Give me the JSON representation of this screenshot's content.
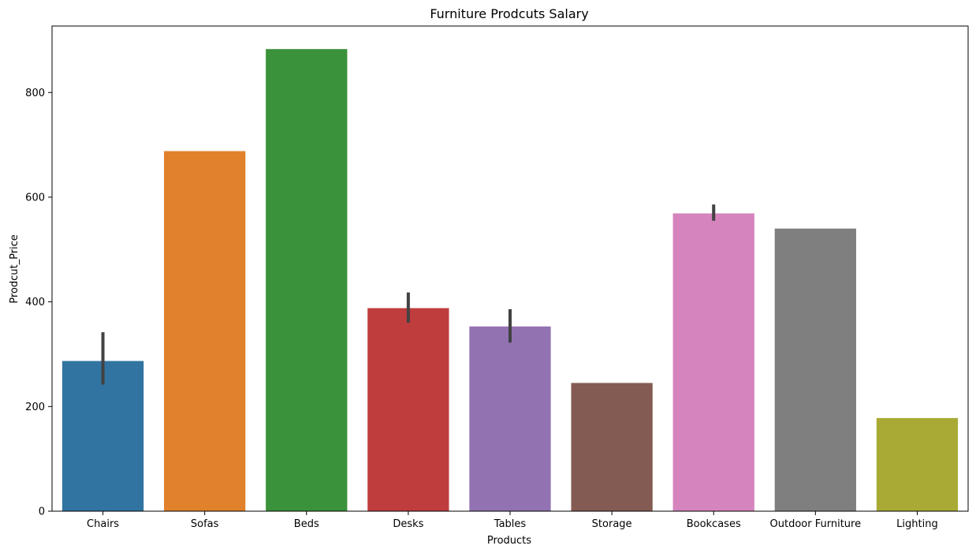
{
  "chart_data": {
    "type": "bar",
    "title": "Furniture Prodcuts Salary",
    "xlabel": "Products",
    "ylabel": "Prodcut_Price",
    "categories": [
      "Chairs",
      "Sofas",
      "Beds",
      "Desks",
      "Tables",
      "Storage",
      "Bookcases",
      "Outdoor Furniture",
      "Lighting"
    ],
    "values": [
      287,
      688,
      883,
      388,
      353,
      245,
      569,
      540,
      178
    ],
    "error_bars": [
      [
        242,
        342
      ],
      null,
      null,
      [
        360,
        418
      ],
      [
        322,
        386
      ],
      null,
      [
        555,
        586
      ],
      null,
      null
    ],
    "colors": [
      "#3274a1",
      "#e1812c",
      "#3a923a",
      "#c03d3e",
      "#9372b2",
      "#845b53",
      "#d684bd",
      "#7f7f7f",
      "#a9aa35"
    ],
    "error_bar_color": "#424242",
    "ylim": [
      0,
      927
    ],
    "yticks": [
      0,
      200,
      400,
      600,
      800
    ],
    "grid": false
  }
}
